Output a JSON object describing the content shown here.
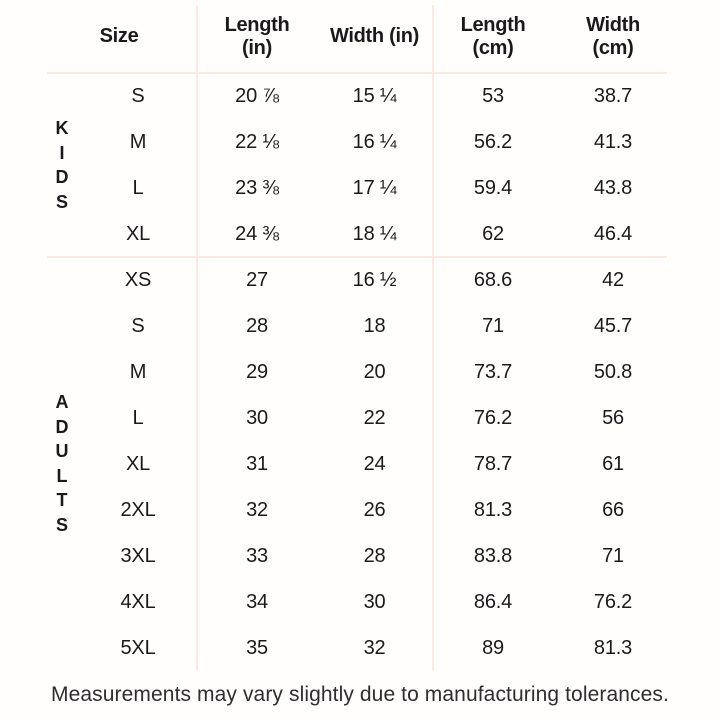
{
  "chart_data": {
    "type": "table",
    "columns": [
      "Size",
      "Length (in)",
      "Width (in)",
      "Length (cm)",
      "Width (cm)"
    ],
    "header_lines": {
      "size": "Size",
      "length_in_top": "Length",
      "length_in_bottom": "(in)",
      "width_in": "Width (in)",
      "length_cm_top": "Length",
      "length_cm_bottom": "(cm)",
      "width_cm_top": "Width",
      "width_cm_bottom": "(cm)"
    },
    "groups": [
      {
        "label": "KIDS",
        "rows": [
          [
            "S",
            "20 ⅞",
            "15 ¼",
            "53",
            "38.7"
          ],
          [
            "M",
            "22 ⅛",
            "16 ¼",
            "56.2",
            "41.3"
          ],
          [
            "L",
            "23 ⅜",
            "17 ¼",
            "59.4",
            "43.8"
          ],
          [
            "XL",
            "24 ⅜",
            "18 ¼",
            "62",
            "46.4"
          ]
        ]
      },
      {
        "label": "ADULTS",
        "rows": [
          [
            "XS",
            "27",
            "16 ½",
            "68.6",
            "42"
          ],
          [
            "S",
            "28",
            "18",
            "71",
            "45.7"
          ],
          [
            "M",
            "29",
            "20",
            "73.7",
            "50.8"
          ],
          [
            "L",
            "30",
            "22",
            "76.2",
            "56"
          ],
          [
            "XL",
            "31",
            "24",
            "78.7",
            "61"
          ],
          [
            "2XL",
            "32",
            "26",
            "81.3",
            "66"
          ],
          [
            "3XL",
            "33",
            "28",
            "83.8",
            "71"
          ],
          [
            "4XL",
            "34",
            "30",
            "86.4",
            "76.2"
          ],
          [
            "5XL",
            "35",
            "32",
            "89",
            "81.3"
          ]
        ]
      }
    ],
    "layout": {
      "grid": "off",
      "dividers": "vertical between size/inches and inches/cm, horizontal under header and between groups"
    }
  },
  "footer": {
    "note": "Measurements may vary slightly due to manufacturing tolerances."
  },
  "colors": {
    "background": "#fffefd",
    "divider_line": "#fce9e1",
    "text": "#1a1a1c",
    "footer_text": "#2e2e31"
  }
}
